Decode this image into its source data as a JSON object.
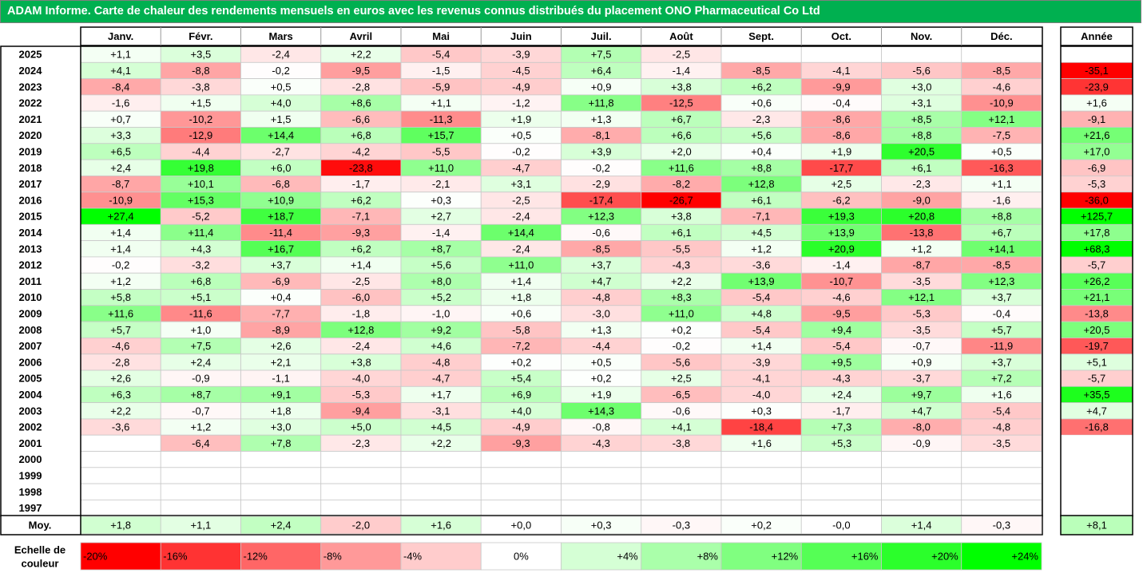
{
  "title": "ADAM Informe. Carte de chaleur des rendements mensuels en euros avec les revenus connus distribués du placement ONO Pharmaceutical Co Ltd",
  "chart_data": {
    "type": "heatmap",
    "months": [
      "Janv.",
      "Févr.",
      "Mars",
      "Avril",
      "Mai",
      "Juin",
      "Juil.",
      "Août",
      "Sept.",
      "Oct.",
      "Nov.",
      "Déc."
    ],
    "year_header": "Année",
    "rows": [
      {
        "year": "2025",
        "values": [
          "+1,1",
          "+3,5",
          "-2,4",
          "+2,2",
          "-5,4",
          "-3,9",
          "+7,5",
          "-2,5",
          "",
          "",
          "",
          ""
        ],
        "annual": ""
      },
      {
        "year": "2024",
        "values": [
          "+4,1",
          "-8,8",
          "-0,2",
          "-9,5",
          "-1,5",
          "-4,5",
          "+6,4",
          "-1,4",
          "-8,5",
          "-4,1",
          "-5,6",
          "-8,5"
        ],
        "annual": "-35,1"
      },
      {
        "year": "2023",
        "values": [
          "-8,4",
          "-3,8",
          "+0,5",
          "-2,8",
          "-5,9",
          "-4,9",
          "+0,9",
          "+3,8",
          "+6,2",
          "-9,9",
          "+3,0",
          "-4,6"
        ],
        "annual": "-23,9"
      },
      {
        "year": "2022",
        "values": [
          "-1,6",
          "+1,5",
          "+4,0",
          "+8,6",
          "+1,1",
          "-1,2",
          "+11,8",
          "-12,5",
          "+0,6",
          "-0,4",
          "+3,1",
          "-10,9"
        ],
        "annual": "+1,6"
      },
      {
        "year": "2021",
        "values": [
          "+0,7",
          "-10,2",
          "+1,5",
          "-6,6",
          "-11,3",
          "+1,9",
          "+1,3",
          "+6,7",
          "-2,3",
          "-8,6",
          "+8,5",
          "+12,1"
        ],
        "annual": "-9,1"
      },
      {
        "year": "2020",
        "values": [
          "+3,3",
          "-12,9",
          "+14,4",
          "+6,8",
          "+15,7",
          "+0,5",
          "-8,1",
          "+6,6",
          "+5,6",
          "-8,6",
          "+8,8",
          "-7,5"
        ],
        "annual": "+21,6"
      },
      {
        "year": "2019",
        "values": [
          "+6,5",
          "-4,4",
          "-2,7",
          "-4,2",
          "-5,5",
          "-0,2",
          "+3,9",
          "+2,0",
          "+0,4",
          "+1,9",
          "+20,5",
          "+0,5"
        ],
        "annual": "+17,0"
      },
      {
        "year": "2018",
        "values": [
          "+2,4",
          "+19,8",
          "+6,0",
          "-23,8",
          "+11,0",
          "-4,7",
          "-0,2",
          "+11,6",
          "+8,8",
          "-17,7",
          "+6,1",
          "-16,3"
        ],
        "annual": "-6,9"
      },
      {
        "year": "2017",
        "values": [
          "-8,7",
          "+10,1",
          "-6,8",
          "-1,7",
          "-2,1",
          "+3,1",
          "-2,9",
          "-8,2",
          "+12,8",
          "+2,5",
          "-2,3",
          "+1,1"
        ],
        "annual": "-5,3"
      },
      {
        "year": "2016",
        "values": [
          "-10,9",
          "+15,3",
          "+10,9",
          "+6,2",
          "+0,3",
          "-2,5",
          "-17,4",
          "-26,7",
          "+6,1",
          "-6,2",
          "-9,0",
          "-1,6"
        ],
        "annual": "-36,0"
      },
      {
        "year": "2015",
        "values": [
          "+27,4",
          "-5,2",
          "+18,7",
          "-7,1",
          "+2,7",
          "-2,4",
          "+12,3",
          "+3,8",
          "-7,1",
          "+19,3",
          "+20,8",
          "+8,8"
        ],
        "annual": "+125,7"
      },
      {
        "year": "2014",
        "values": [
          "+1,4",
          "+11,4",
          "-11,4",
          "-9,3",
          "-1,4",
          "+14,4",
          "-0,6",
          "+6,1",
          "+4,5",
          "+13,9",
          "-13,8",
          "+6,7"
        ],
        "annual": "+17,8"
      },
      {
        "year": "2013",
        "values": [
          "+1,4",
          "+4,3",
          "+16,7",
          "+6,2",
          "+8,7",
          "-2,4",
          "-8,5",
          "-5,5",
          "+1,2",
          "+20,9",
          "+1,2",
          "+14,1"
        ],
        "annual": "+68,3"
      },
      {
        "year": "2012",
        "values": [
          "-0,2",
          "-3,2",
          "+3,7",
          "+1,4",
          "+5,6",
          "+11,0",
          "+3,7",
          "-4,3",
          "-3,6",
          "-1,4",
          "-8,7",
          "-8,5"
        ],
        "annual": "-5,7"
      },
      {
        "year": "2011",
        "values": [
          "+1,2",
          "+6,8",
          "-6,9",
          "-2,5",
          "+8,0",
          "+1,4",
          "+4,7",
          "+2,2",
          "+13,9",
          "-10,7",
          "-3,5",
          "+12,3"
        ],
        "annual": "+26,2"
      },
      {
        "year": "2010",
        "values": [
          "+5,8",
          "+5,1",
          "+0,4",
          "-6,0",
          "+5,2",
          "+1,8",
          "-4,8",
          "+8,3",
          "-5,4",
          "-4,6",
          "+12,1",
          "+3,7"
        ],
        "annual": "+21,1"
      },
      {
        "year": "2009",
        "values": [
          "+11,6",
          "-11,6",
          "-7,7",
          "-1,8",
          "-1,0",
          "+0,6",
          "-3,0",
          "+11,0",
          "+4,8",
          "-9,5",
          "-5,3",
          "-0,4"
        ],
        "annual": "-13,8"
      },
      {
        "year": "2008",
        "values": [
          "+5,7",
          "+1,0",
          "-8,9",
          "+12,8",
          "+9,2",
          "-5,8",
          "+1,3",
          "+0,2",
          "-5,4",
          "+9,4",
          "-3,5",
          "+5,7"
        ],
        "annual": "+20,5"
      },
      {
        "year": "2007",
        "values": [
          "-4,6",
          "+7,5",
          "+2,6",
          "-2,4",
          "+4,6",
          "-7,2",
          "-4,4",
          "-0,2",
          "+1,4",
          "-5,4",
          "-0,7",
          "-11,9"
        ],
        "annual": "-19,7"
      },
      {
        "year": "2006",
        "values": [
          "-2,8",
          "+2,4",
          "+2,1",
          "+3,8",
          "-4,8",
          "+0,2",
          "+0,5",
          "-5,6",
          "-3,9",
          "+9,5",
          "+0,9",
          "+3,7"
        ],
        "annual": "+5,1"
      },
      {
        "year": "2005",
        "values": [
          "+2,6",
          "-0,9",
          "-1,1",
          "-4,0",
          "-4,7",
          "+5,4",
          "+0,2",
          "+2,5",
          "-4,1",
          "-4,3",
          "-3,7",
          "+7,2"
        ],
        "annual": "-5,7"
      },
      {
        "year": "2004",
        "values": [
          "+6,3",
          "+8,7",
          "+9,1",
          "-5,3",
          "+1,7",
          "+6,9",
          "+1,9",
          "-6,5",
          "-4,0",
          "+2,4",
          "+9,7",
          "+1,6"
        ],
        "annual": "+35,5"
      },
      {
        "year": "2003",
        "values": [
          "+2,2",
          "-0,7",
          "+1,8",
          "-9,4",
          "-3,1",
          "+4,0",
          "+14,3",
          "-0,6",
          "+0,3",
          "-1,7",
          "+4,7",
          "-5,4"
        ],
        "annual": "+4,7"
      },
      {
        "year": "2002",
        "values": [
          "-3,6",
          "+1,2",
          "+3,0",
          "+5,0",
          "+4,5",
          "-4,9",
          "-0,8",
          "+4,1",
          "-18,4",
          "+7,3",
          "-8,0",
          "-4,8"
        ],
        "annual": "-16,8"
      },
      {
        "year": "2001",
        "values": [
          "",
          "-6,4",
          "+7,8",
          "-2,3",
          "+2,2",
          "-9,3",
          "-4,3",
          "-3,8",
          "+1,6",
          "+5,3",
          "-0,9",
          "-3,5"
        ],
        "annual": ""
      },
      {
        "year": "2000",
        "values": [
          "",
          "",
          "",
          "",
          "",
          "",
          "",
          "",
          "",
          "",
          "",
          ""
        ],
        "annual": ""
      },
      {
        "year": "1999",
        "values": [
          "",
          "",
          "",
          "",
          "",
          "",
          "",
          "",
          "",
          "",
          "",
          ""
        ],
        "annual": ""
      },
      {
        "year": "1998",
        "values": [
          "",
          "",
          "",
          "",
          "",
          "",
          "",
          "",
          "",
          "",
          "",
          ""
        ],
        "annual": ""
      },
      {
        "year": "1997",
        "values": [
          "",
          "",
          "",
          "",
          "",
          "",
          "",
          "",
          "",
          "",
          "",
          ""
        ],
        "annual": ""
      }
    ],
    "average": {
      "label": "Moy.",
      "values": [
        "+1,8",
        "+1,1",
        "+2,4",
        "-2,0",
        "+1,6",
        "+0,0",
        "+0,3",
        "-0,3",
        "+0,2",
        "-0,0",
        "+1,4",
        "-0,3"
      ],
      "annual": "+8,1"
    },
    "scale": {
      "label_line1": "Echelle de",
      "label_line2": "couleur",
      "steps": [
        {
          "label": "-20%",
          "value": -20
        },
        {
          "label": "-16%",
          "value": -16
        },
        {
          "label": "-12%",
          "value": -12
        },
        {
          "label": "-8%",
          "value": -8
        },
        {
          "label": "-4%",
          "value": -4
        },
        {
          "label": "0%",
          "value": 0
        },
        {
          "label": "+4%",
          "value": 4
        },
        {
          "label": "+8%",
          "value": 8
        },
        {
          "label": "+12%",
          "value": 12
        },
        {
          "label": "+16%",
          "value": 16
        },
        {
          "label": "+20%",
          "value": 20
        },
        {
          "label": "+24%",
          "value": 24
        }
      ]
    },
    "colors": {
      "title_bg": "#00b050",
      "negative_max": "#ff0000",
      "positive_max": "#00ff00",
      "neutral": "#ffffff"
    }
  }
}
